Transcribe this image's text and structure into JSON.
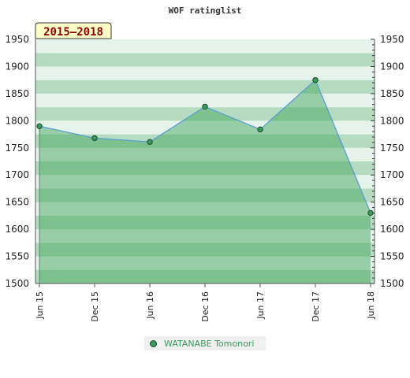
{
  "chart_data": {
    "type": "area",
    "title": "WOF ratinglist",
    "period_label": "2015–2018",
    "x": [
      "Jun 15",
      "Dec 15",
      "Jun 16",
      "Dec 16",
      "Jun 17",
      "Dec 17",
      "Jun 18"
    ],
    "series": [
      {
        "name": "WATANABE Tomonori",
        "values": [
          1790,
          1768,
          1761,
          1826,
          1784,
          1875,
          1630
        ]
      }
    ],
    "ylim": [
      1500,
      1950
    ],
    "yticks": [
      1500,
      1550,
      1600,
      1650,
      1700,
      1750,
      1800,
      1850,
      1900,
      1950
    ],
    "xlabel": "",
    "ylabel": "",
    "legend_position": "bottom-center",
    "grid": true,
    "colors": {
      "line": "#5a9fd4",
      "marker_fill": "#3a9a5a",
      "fill": "#2e9a4a",
      "band_dark": "#b5dcc0",
      "band_light": "#e6f3ea",
      "period_bg": "#ffffc8"
    }
  }
}
